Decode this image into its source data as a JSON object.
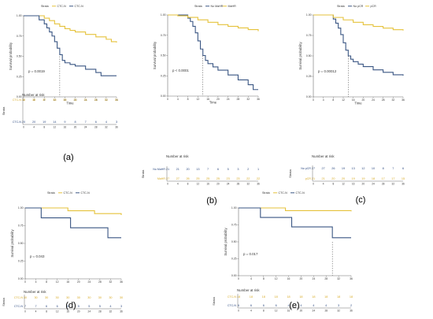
{
  "colors": {
    "ctc_neg": "#e5c23b",
    "ctc_pos": "#3a5683",
    "axis": "#6f6f6f",
    "text": "#333333",
    "neg_text": "#d9ac28",
    "pos_text": "#2f4c83"
  },
  "chart_data": [
    {
      "type": "line",
      "label": "(a)",
      "legend_title": "Strata",
      "legend": [
        "CTC-N",
        "CTC-N"
      ],
      "xlabel": "Time",
      "ylabel": "Survival probability",
      "xticks": [
        0,
        4,
        8,
        12,
        16,
        20,
        24,
        28,
        32,
        36
      ],
      "yticks": [
        "0.00",
        "0.25",
        "0.50",
        "0.75",
        "1.00"
      ],
      "xlim": [
        0,
        36
      ],
      "ylim": [
        0,
        1
      ],
      "pvalue": "p = 0.0019",
      "median_x": 14,
      "series": [
        {
          "color": "ctc_neg",
          "points": [
            [
              0,
              1
            ],
            [
              5,
              1
            ],
            [
              8,
              0.97
            ],
            [
              10,
              0.94
            ],
            [
              12,
              0.9
            ],
            [
              14,
              0.87
            ],
            [
              16,
              0.84
            ],
            [
              18,
              0.82
            ],
            [
              20,
              0.8
            ],
            [
              24,
              0.77
            ],
            [
              28,
              0.74
            ],
            [
              32,
              0.71
            ],
            [
              34,
              0.68
            ],
            [
              36,
              0.67
            ]
          ]
        },
        {
          "color": "ctc_pos",
          "points": [
            [
              0,
              1
            ],
            [
              4,
              1
            ],
            [
              6,
              0.95
            ],
            [
              8,
              0.9
            ],
            [
              9,
              0.85
            ],
            [
              10,
              0.8
            ],
            [
              11,
              0.75
            ],
            [
              12,
              0.68
            ],
            [
              13,
              0.6
            ],
            [
              14,
              0.52
            ],
            [
              15,
              0.45
            ],
            [
              16,
              0.42
            ],
            [
              18,
              0.4
            ],
            [
              20,
              0.38
            ],
            [
              24,
              0.34
            ],
            [
              28,
              0.3
            ],
            [
              30,
              0.26
            ],
            [
              36,
              0.26
            ]
          ]
        }
      ],
      "risk_title": "Number at risk",
      "risk_ylabel": "Strata",
      "risk_labels": [
        "CTC-N",
        "CTC-N"
      ],
      "risk_rows": [
        [
          "38",
          "38",
          "37",
          "36",
          "33",
          "31",
          "31",
          "31",
          "31",
          "31"
        ],
        [
          "20",
          "20",
          "19",
          "14",
          "9",
          "8",
          "7",
          "6",
          "4",
          "3"
        ]
      ]
    },
    {
      "type": "line",
      "label": "(b)",
      "legend_title": "Strata",
      "legend": [
        "No MaHR",
        "MaHR"
      ],
      "xlabel": "Time",
      "ylabel": "Survival probability",
      "xticks": [
        0,
        4,
        8,
        12,
        16,
        20,
        24,
        28,
        32,
        36
      ],
      "yticks": [
        "0.00",
        "0.25",
        "0.50",
        "0.75",
        "1.00"
      ],
      "xlim": [
        0,
        36
      ],
      "ylim": [
        0,
        1
      ],
      "pvalue": "p < 0.0001",
      "median_x": 14,
      "series": [
        {
          "color": "ctc_pos",
          "points": [
            [
              0,
              1
            ],
            [
              6,
              1
            ],
            [
              8,
              0.96
            ],
            [
              9,
              0.92
            ],
            [
              10,
              0.86
            ],
            [
              11,
              0.78
            ],
            [
              12,
              0.68
            ],
            [
              13,
              0.58
            ],
            [
              14,
              0.5
            ],
            [
              15,
              0.44
            ],
            [
              16,
              0.4
            ],
            [
              18,
              0.36
            ],
            [
              20,
              0.32
            ],
            [
              24,
              0.26
            ],
            [
              28,
              0.2
            ],
            [
              32,
              0.14
            ],
            [
              34,
              0.08
            ],
            [
              36,
              0.08
            ]
          ]
        },
        {
          "color": "ctc_neg",
          "points": [
            [
              0,
              1
            ],
            [
              4,
              0.99
            ],
            [
              8,
              0.97
            ],
            [
              12,
              0.94
            ],
            [
              16,
              0.91
            ],
            [
              20,
              0.88
            ],
            [
              24,
              0.86
            ],
            [
              28,
              0.84
            ],
            [
              32,
              0.82
            ],
            [
              36,
              0.8
            ]
          ]
        }
      ],
      "risk_title": "Number at risk",
      "risk_ylabel": "Strata",
      "risk_labels": [
        "No MaHR",
        "MaHR"
      ],
      "risk_rows": [
        [
          "21",
          "21",
          "20",
          "13",
          "7",
          "6",
          "5",
          "3",
          "2",
          "1"
        ],
        [
          "27",
          "27",
          "26",
          "25",
          "25",
          "25",
          "23",
          "23",
          "22",
          "22"
        ]
      ]
    },
    {
      "type": "line",
      "label": "(c)",
      "legend_title": "Strata",
      "legend": [
        "No pCR",
        "pCR"
      ],
      "xlabel": "Time",
      "ylabel": "Survival probability",
      "xticks": [
        0,
        4,
        8,
        12,
        16,
        20,
        24,
        28,
        32,
        36
      ],
      "yticks": [
        "0.00",
        "0.25",
        "0.50",
        "0.75",
        "1.00"
      ],
      "xlim": [
        0,
        36
      ],
      "ylim": [
        0,
        1
      ],
      "pvalue": "p = 0.00012",
      "median_x": 14,
      "series": [
        {
          "color": "ctc_pos",
          "points": [
            [
              0,
              1
            ],
            [
              6,
              1
            ],
            [
              8,
              0.95
            ],
            [
              9,
              0.9
            ],
            [
              10,
              0.84
            ],
            [
              11,
              0.76
            ],
            [
              12,
              0.66
            ],
            [
              13,
              0.57
            ],
            [
              14,
              0.5
            ],
            [
              15,
              0.46
            ],
            [
              16,
              0.43
            ],
            [
              18,
              0.4
            ],
            [
              20,
              0.37
            ],
            [
              24,
              0.33
            ],
            [
              28,
              0.3
            ],
            [
              32,
              0.27
            ],
            [
              36,
              0.26
            ]
          ]
        },
        {
          "color": "ctc_neg",
          "points": [
            [
              0,
              1
            ],
            [
              6,
              1
            ],
            [
              8,
              0.97
            ],
            [
              12,
              0.94
            ],
            [
              16,
              0.91
            ],
            [
              20,
              0.88
            ],
            [
              24,
              0.86
            ],
            [
              28,
              0.84
            ],
            [
              32,
              0.82
            ],
            [
              36,
              0.81
            ]
          ]
        }
      ],
      "risk_title": "Number at risk",
      "risk_ylabel": "Strata",
      "risk_labels": [
        "No pCR",
        "pCR"
      ],
      "risk_rows": [
        [
          "27",
          "27",
          "26",
          "19",
          "13",
          "12",
          "10",
          "8",
          "7",
          "6"
        ],
        [
          "21",
          "21",
          "20",
          "20",
          "19",
          "19",
          "18",
          "17",
          "17",
          "15"
        ]
      ]
    },
    {
      "type": "line",
      "label": "(d)",
      "legend_title": "Strata",
      "legend": [
        "CTC-N",
        "CTC-N"
      ],
      "xlabel": "",
      "ylabel": "Survival probability",
      "xticks": [
        0,
        4,
        8,
        12,
        16,
        20,
        24,
        28,
        32,
        36
      ],
      "yticks": [
        "0.00",
        "0.25",
        "0.50",
        "0.75",
        "1.00"
      ],
      "xlim": [
        0,
        36
      ],
      "ylim": [
        0,
        1
      ],
      "pvalue": "p = 0.043",
      "median_x": null,
      "series": [
        {
          "color": "ctc_neg",
          "points": [
            [
              0,
              1
            ],
            [
              14,
              1
            ],
            [
              16,
              0.96
            ],
            [
              24,
              0.96
            ],
            [
              26,
              0.92
            ],
            [
              36,
              0.9
            ]
          ]
        },
        {
          "color": "ctc_pos",
          "points": [
            [
              0,
              1
            ],
            [
              5,
              1
            ],
            [
              6,
              0.86
            ],
            [
              16,
              0.86
            ],
            [
              17,
              0.72
            ],
            [
              30,
              0.72
            ],
            [
              31,
              0.58
            ],
            [
              36,
              0.58
            ]
          ]
        }
      ],
      "risk_title": "Number at risk",
      "risk_ylabel": "Strata",
      "risk_labels": [
        "CTC-N",
        "CTC-N"
      ],
      "risk_rows": [
        [
          "30",
          "30",
          "30",
          "30",
          "30",
          "30",
          "30",
          "30",
          "30",
          "30"
        ],
        [
          "7",
          "7",
          "6",
          "6",
          "5",
          "5",
          "5",
          "5",
          "4",
          "3"
        ]
      ]
    },
    {
      "type": "line",
      "label": "(e)",
      "legend_title": "Strata",
      "legend": [
        "CTC-N",
        "CTC-N"
      ],
      "xlabel": "",
      "ylabel": "Survival probability",
      "xticks": [
        0,
        4,
        8,
        12,
        16,
        20,
        24,
        28,
        32,
        36
      ],
      "yticks": [
        "0.00",
        "0.25",
        "0.50",
        "0.75",
        "1.00"
      ],
      "xlim": [
        0,
        36
      ],
      "ylim": [
        0,
        1
      ],
      "pvalue": "p = 0.017",
      "median_x": 30,
      "series": [
        {
          "color": "ctc_neg",
          "points": [
            [
              0,
              1
            ],
            [
              14,
              1
            ],
            [
              15,
              0.96
            ],
            [
              36,
              0.95
            ]
          ]
        },
        {
          "color": "ctc_pos",
          "points": [
            [
              0,
              1
            ],
            [
              6,
              1
            ],
            [
              7,
              0.86
            ],
            [
              16,
              0.86
            ],
            [
              17,
              0.72
            ],
            [
              29,
              0.72
            ],
            [
              30,
              0.56
            ],
            [
              36,
              0.56
            ]
          ]
        }
      ],
      "risk_title": "Number at risk",
      "risk_ylabel": "Strata",
      "risk_labels": [
        "CTC-N",
        "CTC-N"
      ],
      "risk_rows": [
        [
          "18",
          "18",
          "18",
          "18",
          "18",
          "18",
          "18",
          "18",
          "18",
          "18"
        ],
        [
          "6",
          "6",
          "6",
          "6",
          "4",
          "4",
          "4",
          "4",
          "3",
          "2"
        ]
      ]
    }
  ]
}
